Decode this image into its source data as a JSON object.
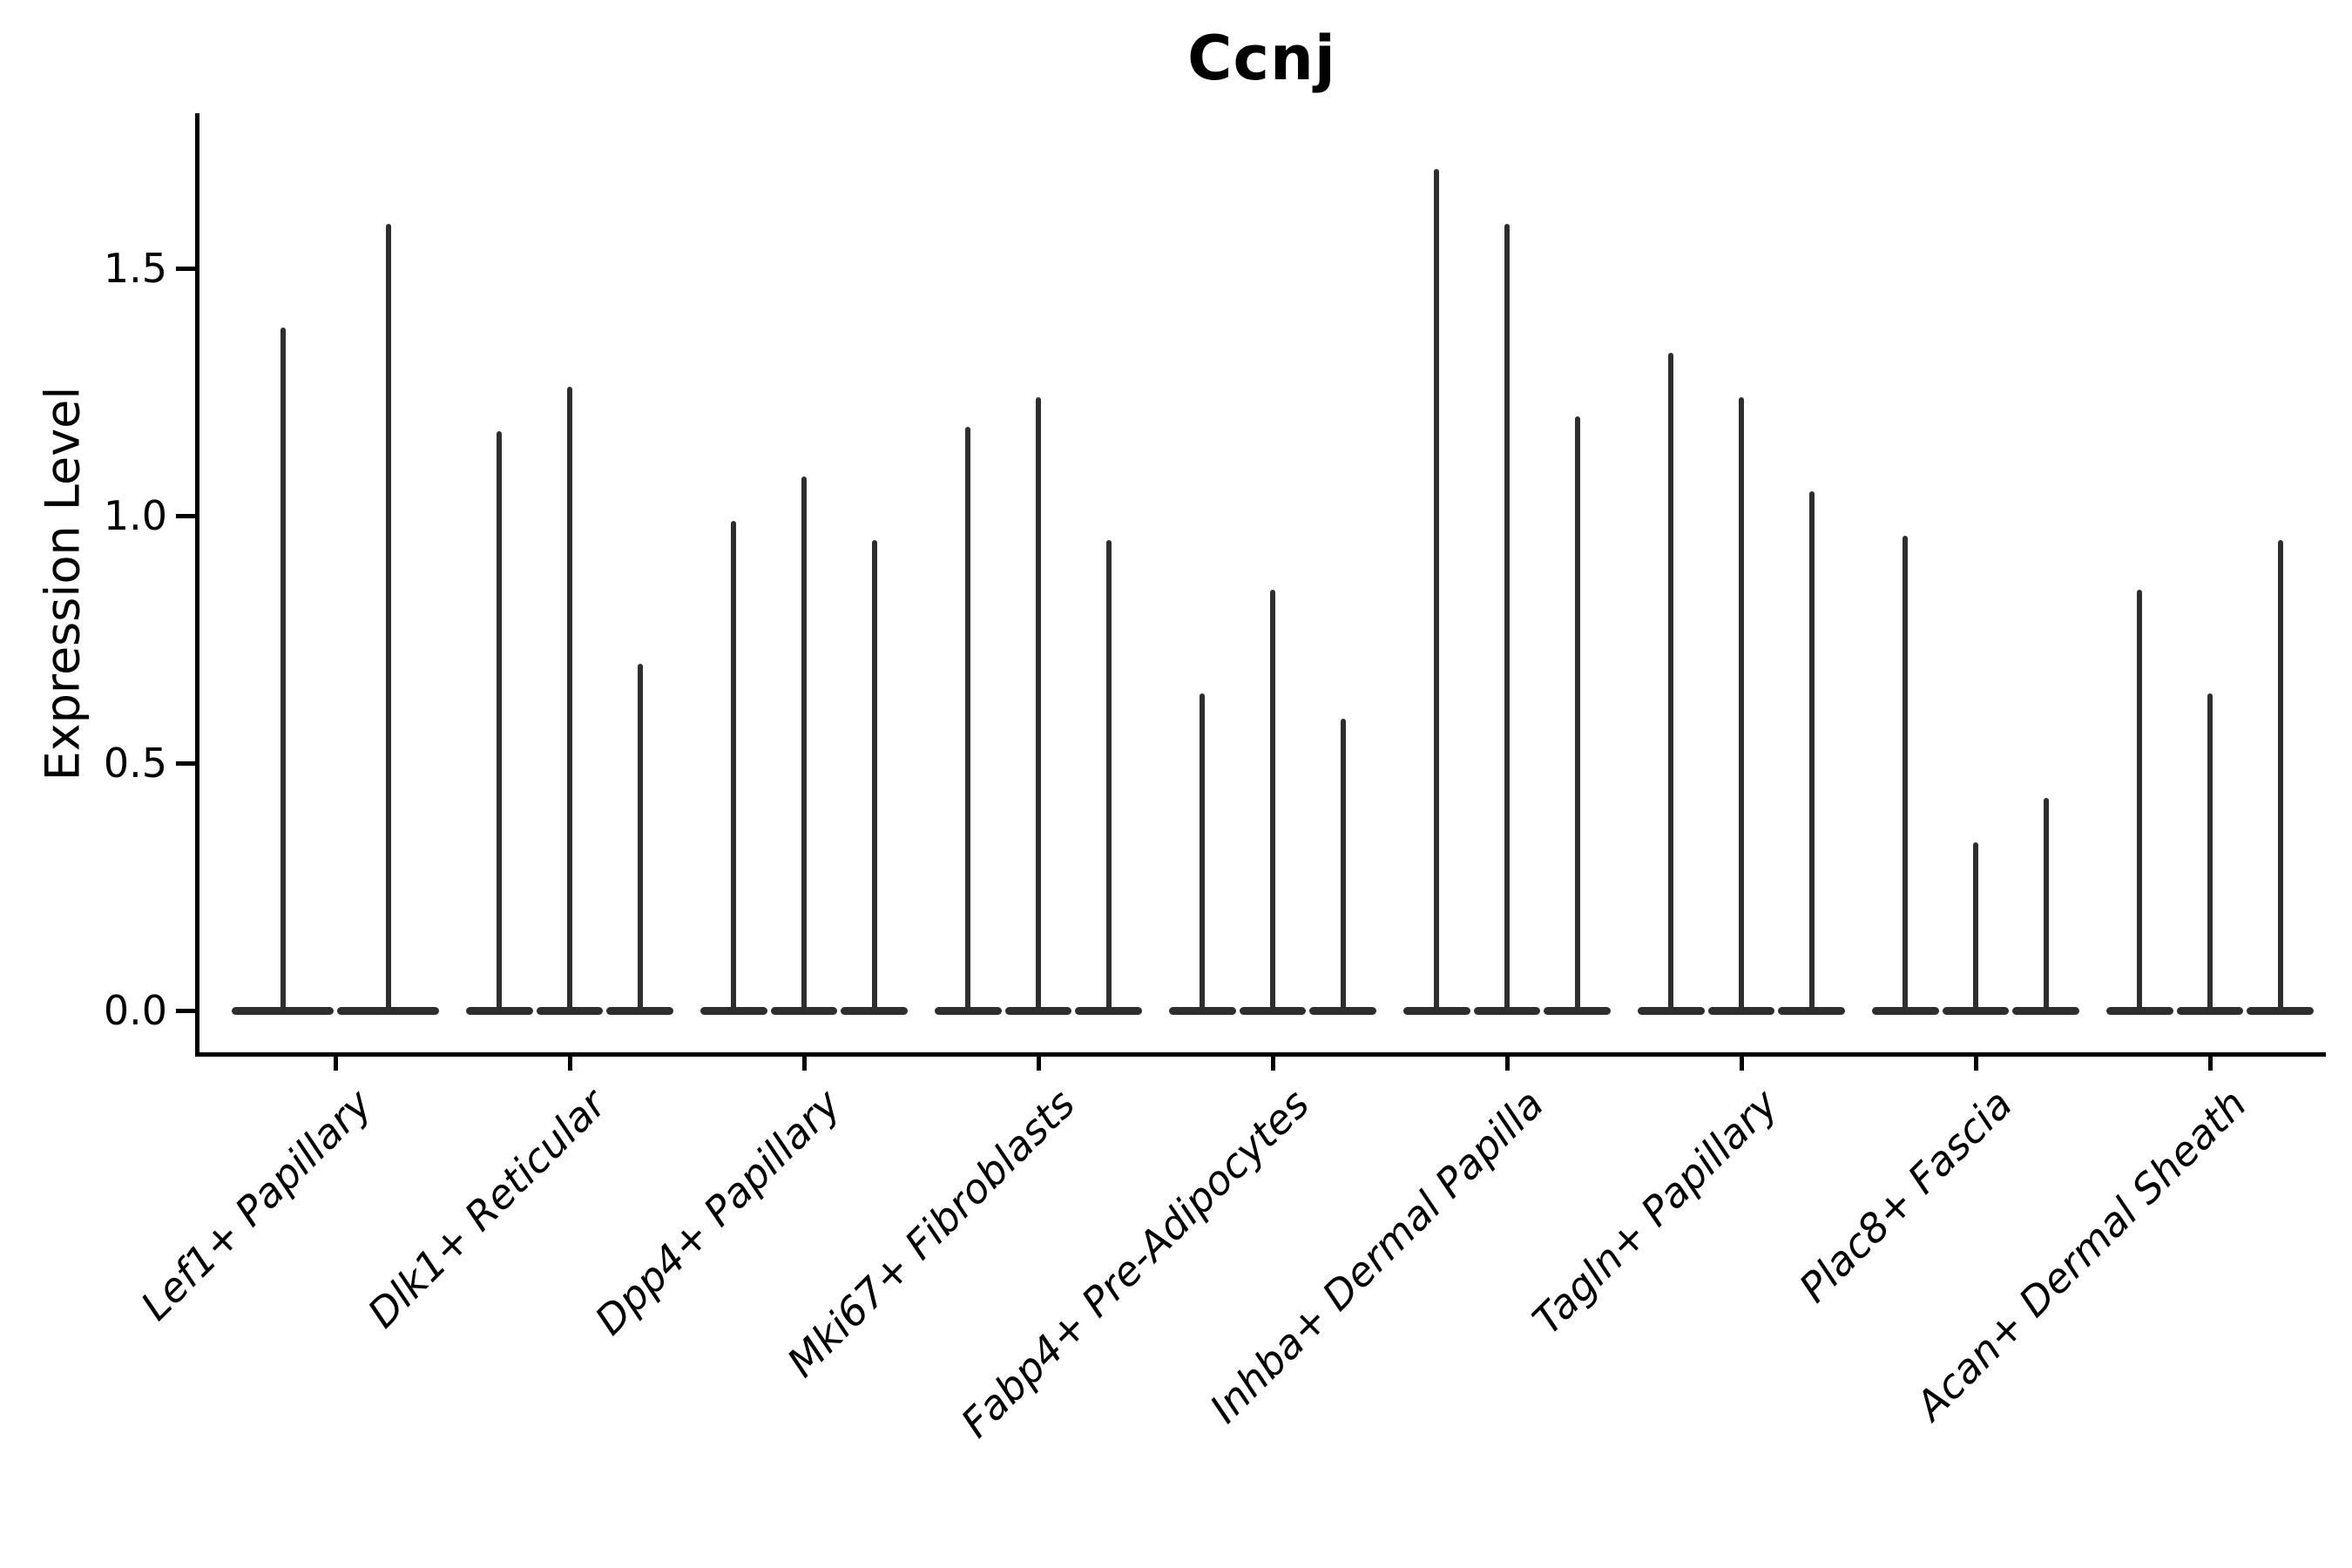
{
  "colors": {
    "violin": "#2e2e2e",
    "axis": "#000000",
    "text": "#000000",
    "background": "#ffffff"
  },
  "chart_data": {
    "type": "violin",
    "title": "Ccnj",
    "ylabel": "Expression Level",
    "xlabel": "",
    "grid": false,
    "legend": "none",
    "ylim": [
      -0.09,
      1.81
    ],
    "ytick_labels": [
      "0.0",
      "0.5",
      "1.0",
      "1.5"
    ],
    "ytick_values": [
      0.0,
      0.5,
      1.0,
      1.5
    ],
    "categories": [
      "Lef1+ Papillary",
      "Dlk1+ Reticular",
      "Dpp4+ Papillary",
      "Mki67+ Fibroblasts",
      "Fabp4+ Pre-Adipocytes",
      "Inhba+ Dermal Papilla",
      "Tagln+ Papillary",
      "Plac8+ Fascia",
      "Acan+ Dermal Sheath"
    ],
    "shape_note": "Each violin's density is concentrated at expression 0 (wide flat base) with a thin vertical spike reaching the maximum expression value",
    "groups": [
      {
        "category": "Lef1+ Papillary",
        "violin_maxima": [
          1.38,
          1.59
        ]
      },
      {
        "category": "Dlk1+ Reticular",
        "violin_maxima": [
          1.17,
          1.26,
          0.7
        ]
      },
      {
        "category": "Dpp4+ Papillary",
        "violin_maxima": [
          0.99,
          1.08,
          0.95
        ]
      },
      {
        "category": "Mki67+ Fibroblasts",
        "violin_maxima": [
          1.18,
          1.24,
          0.95
        ]
      },
      {
        "category": "Fabp4+ Pre-Adipocytes",
        "violin_maxima": [
          0.64,
          0.85,
          0.59
        ]
      },
      {
        "category": "Inhba+ Dermal Papilla",
        "violin_maxima": [
          1.7,
          1.59,
          1.2
        ]
      },
      {
        "category": "Tagln+ Papillary",
        "violin_maxima": [
          1.33,
          1.24,
          1.05
        ]
      },
      {
        "category": "Plac8+ Fascia",
        "violin_maxima": [
          0.96,
          0.34,
          0.43
        ]
      },
      {
        "category": "Acan+ Dermal Sheath",
        "violin_maxima": [
          0.85,
          0.64,
          0.95
        ]
      }
    ]
  }
}
